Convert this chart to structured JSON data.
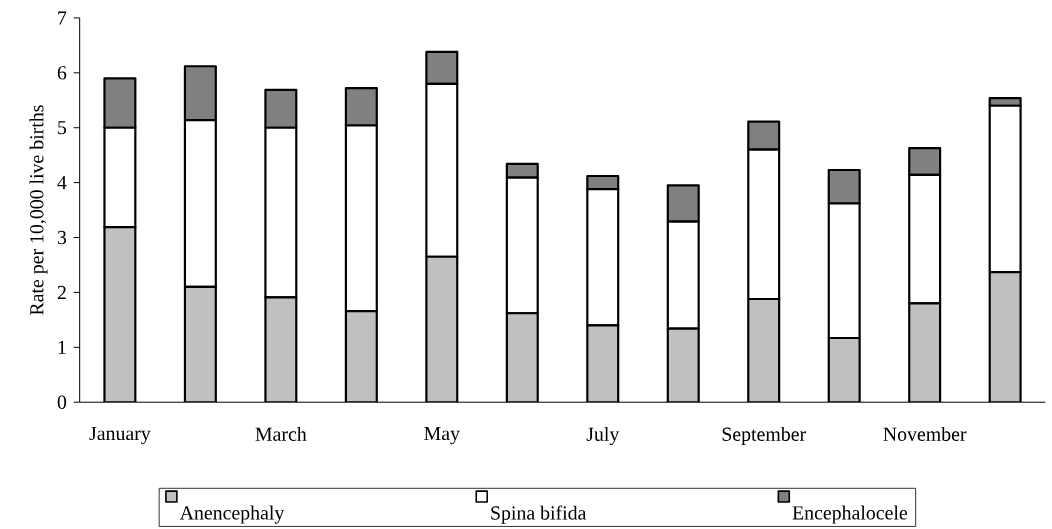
{
  "chart_data": {
    "type": "bar",
    "stacked": true,
    "ylabel": "Rate per 10,000 live births",
    "categories": [
      "January",
      null,
      "March",
      null,
      "May",
      null,
      "July",
      null,
      "September",
      null,
      "November",
      null
    ],
    "series": [
      {
        "name": "Anencephaly",
        "color": "#c0c0c0",
        "values": [
          3.19,
          2.1,
          1.91,
          1.66,
          2.65,
          1.62,
          1.4,
          1.34,
          1.88,
          1.17,
          1.8,
          2.37
        ]
      },
      {
        "name": "Spina bifida",
        "color": "#ffffff",
        "values": [
          1.81,
          3.04,
          3.09,
          3.38,
          3.15,
          2.47,
          2.48,
          1.95,
          2.72,
          2.45,
          2.34,
          3.03
        ]
      },
      {
        "name": "Encephalocele",
        "color": "#808080",
        "values": [
          0.9,
          0.98,
          0.69,
          0.68,
          0.58,
          0.25,
          0.24,
          0.66,
          0.51,
          0.61,
          0.49,
          0.14
        ]
      }
    ],
    "ylim": [
      0,
      7
    ],
    "yticks": [
      0,
      1,
      2,
      3,
      4,
      5,
      6,
      7
    ],
    "legend": "bottom",
    "grid": false
  }
}
